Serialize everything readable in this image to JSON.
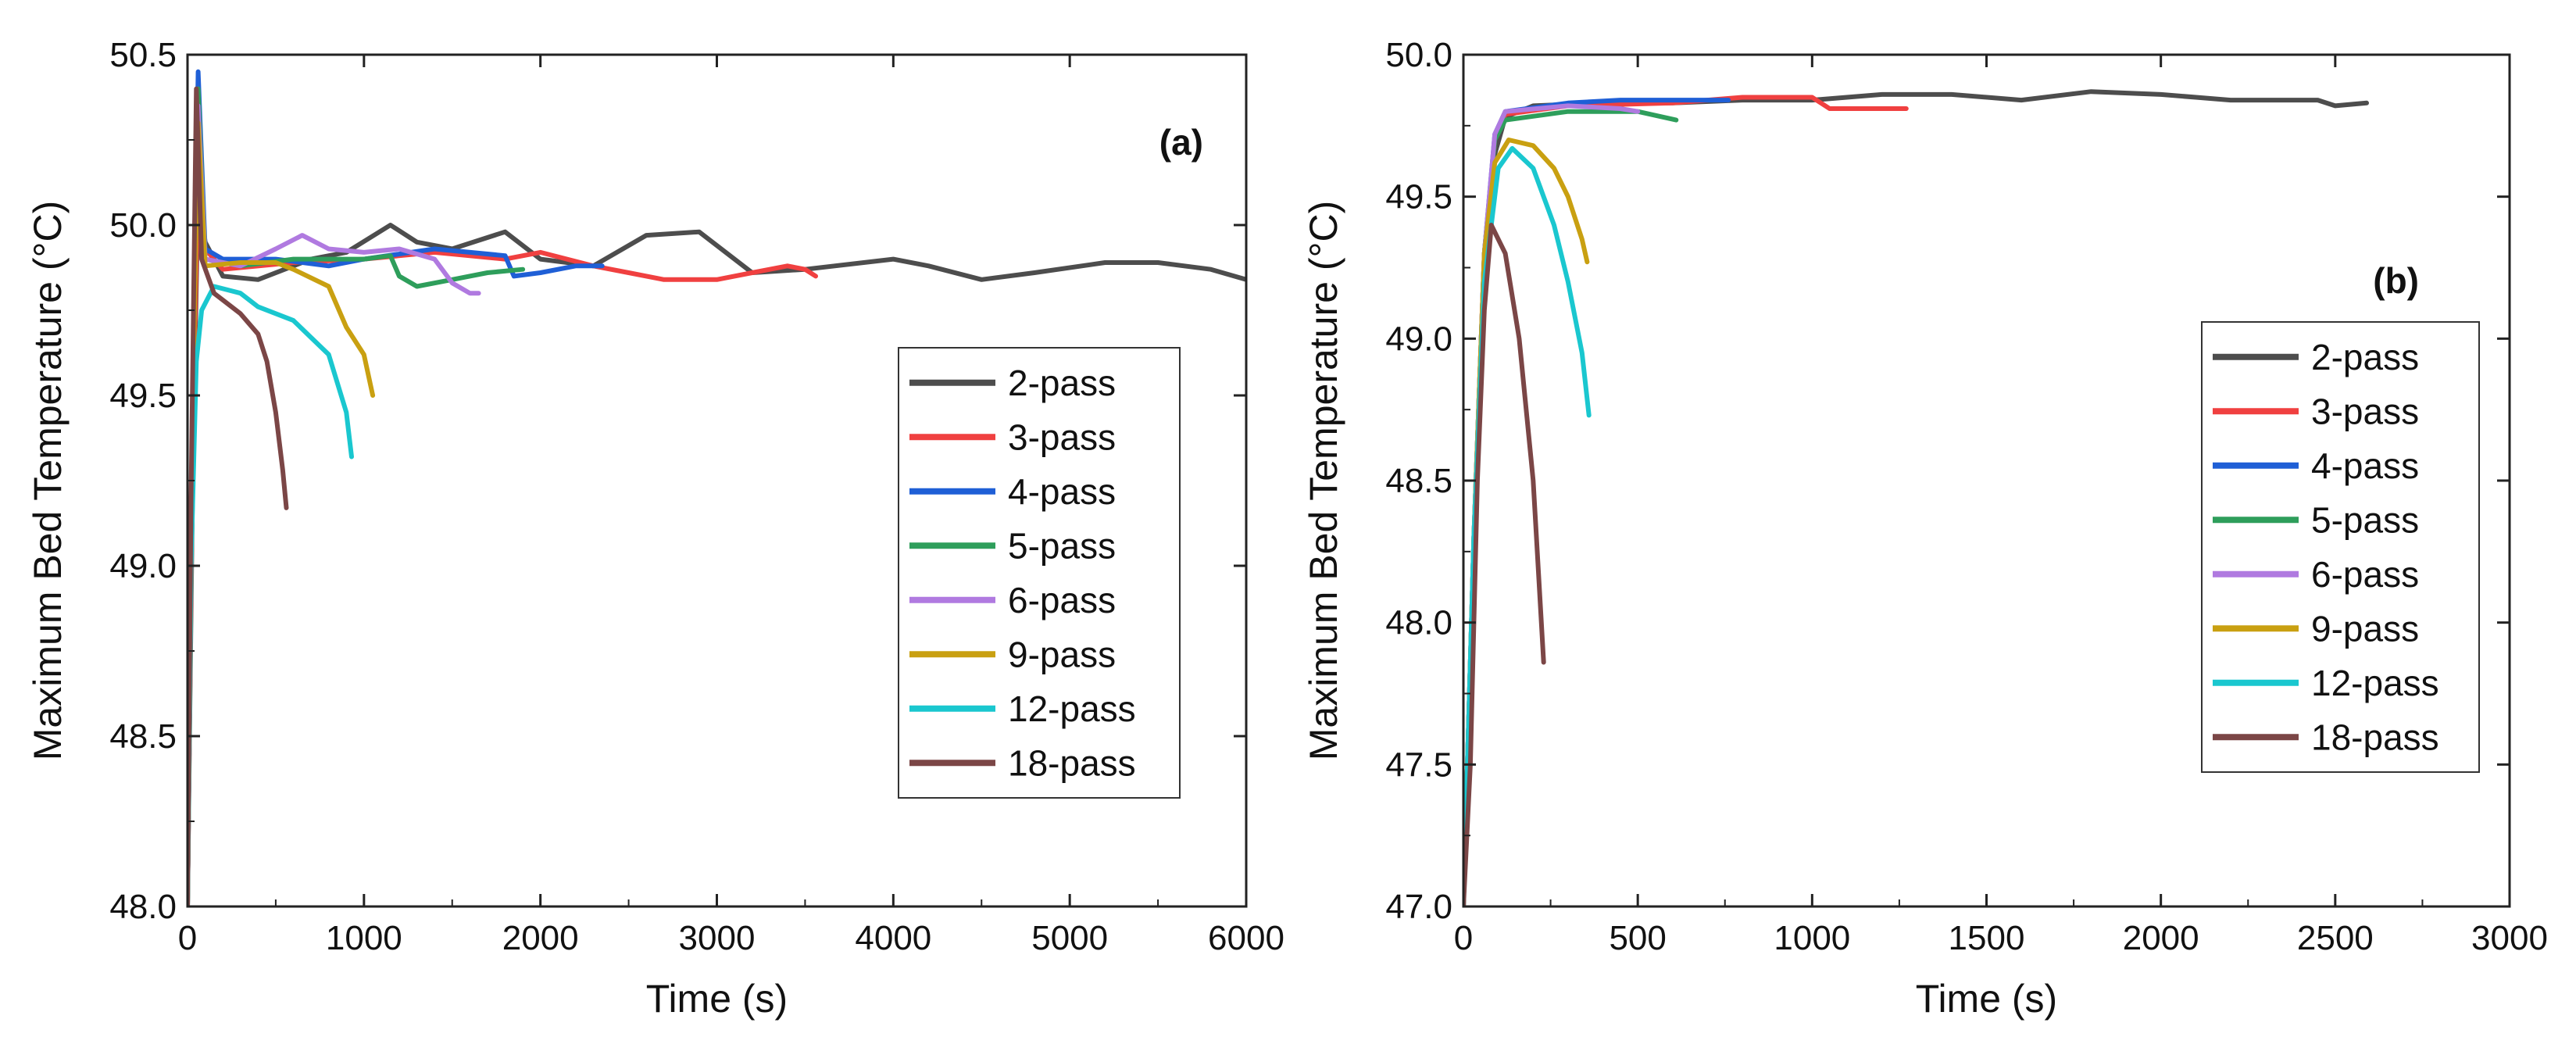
{
  "chart_data": [
    {
      "type": "line",
      "panel_label": "(a)",
      "xlabel": "Time (s)",
      "ylabel": "Maximum Bed Temperature (°C)",
      "xlim": [
        0,
        6000
      ],
      "ylim": [
        48.0,
        50.5
      ],
      "xticks": [
        0,
        1000,
        2000,
        3000,
        4000,
        5000,
        6000
      ],
      "yticks": [
        48.0,
        48.5,
        49.0,
        49.5,
        50.0,
        50.5
      ],
      "xtick_labels": [
        "0",
        "1000",
        "2000",
        "3000",
        "4000",
        "5000",
        "6000"
      ],
      "ytick_labels": [
        "48.0",
        "48.5",
        "49.0",
        "49.5",
        "50.0",
        "50.5"
      ],
      "grid": false,
      "legend_position": "center-right",
      "series": [
        {
          "name": "2-pass",
          "color": "#4d4d4d",
          "points": [
            [
              0,
              48.0
            ],
            [
              30,
              49.3
            ],
            [
              60,
              50.1
            ],
            [
              100,
              49.95
            ],
            [
              200,
              49.85
            ],
            [
              400,
              49.84
            ],
            [
              700,
              49.9
            ],
            [
              900,
              49.92
            ],
            [
              1150,
              50.0
            ],
            [
              1300,
              49.95
            ],
            [
              1500,
              49.93
            ],
            [
              1800,
              49.98
            ],
            [
              2000,
              49.9
            ],
            [
              2300,
              49.88
            ],
            [
              2600,
              49.97
            ],
            [
              2900,
              49.98
            ],
            [
              3200,
              49.86
            ],
            [
              3500,
              49.87
            ],
            [
              4000,
              49.9
            ],
            [
              4200,
              49.88
            ],
            [
              4500,
              49.84
            ],
            [
              4800,
              49.86
            ],
            [
              5200,
              49.89
            ],
            [
              5500,
              49.89
            ],
            [
              5800,
              49.87
            ],
            [
              6000,
              49.84
            ]
          ]
        },
        {
          "name": "3-pass",
          "color": "#f04040",
          "points": [
            [
              0,
              48.0
            ],
            [
              30,
              49.4
            ],
            [
              60,
              50.15
            ],
            [
              100,
              49.93
            ],
            [
              200,
              49.87
            ],
            [
              600,
              49.89
            ],
            [
              1000,
              49.9
            ],
            [
              1400,
              49.92
            ],
            [
              1800,
              49.9
            ],
            [
              2000,
              49.92
            ],
            [
              2300,
              49.88
            ],
            [
              2500,
              49.86
            ],
            [
              2700,
              49.84
            ],
            [
              3000,
              49.84
            ],
            [
              3200,
              49.86
            ],
            [
              3400,
              49.88
            ],
            [
              3500,
              49.87
            ],
            [
              3560,
              49.85
            ]
          ]
        },
        {
          "name": "4-pass",
          "color": "#1f5fd6",
          "points": [
            [
              0,
              48.0
            ],
            [
              30,
              49.5
            ],
            [
              60,
              50.45
            ],
            [
              100,
              49.93
            ],
            [
              200,
              49.9
            ],
            [
              500,
              49.9
            ],
            [
              800,
              49.88
            ],
            [
              1000,
              49.9
            ],
            [
              1400,
              49.93
            ],
            [
              1800,
              49.91
            ],
            [
              1850,
              49.85
            ],
            [
              2000,
              49.86
            ],
            [
              2200,
              49.88
            ],
            [
              2350,
              49.88
            ]
          ]
        },
        {
          "name": "5-pass",
          "color": "#2e9e5b",
          "points": [
            [
              0,
              48.0
            ],
            [
              30,
              49.5
            ],
            [
              60,
              50.4
            ],
            [
              100,
              49.9
            ],
            [
              300,
              49.88
            ],
            [
              600,
              49.9
            ],
            [
              1000,
              49.9
            ],
            [
              1150,
              49.91
            ],
            [
              1200,
              49.85
            ],
            [
              1300,
              49.82
            ],
            [
              1500,
              49.84
            ],
            [
              1700,
              49.86
            ],
            [
              1900,
              49.87
            ]
          ]
        },
        {
          "name": "6-pass",
          "color": "#b07ae0",
          "points": [
            [
              0,
              48.0
            ],
            [
              30,
              49.5
            ],
            [
              60,
              50.35
            ],
            [
              100,
              49.9
            ],
            [
              300,
              49.88
            ],
            [
              500,
              49.93
            ],
            [
              650,
              49.97
            ],
            [
              800,
              49.93
            ],
            [
              1000,
              49.92
            ],
            [
              1200,
              49.93
            ],
            [
              1400,
              49.9
            ],
            [
              1500,
              49.83
            ],
            [
              1600,
              49.8
            ],
            [
              1650,
              49.8
            ]
          ]
        },
        {
          "name": "9-pass",
          "color": "#c9a011",
          "points": [
            [
              0,
              48.0
            ],
            [
              30,
              49.5
            ],
            [
              60,
              50.3
            ],
            [
              100,
              49.88
            ],
            [
              300,
              49.89
            ],
            [
              500,
              49.89
            ],
            [
              600,
              49.87
            ],
            [
              800,
              49.82
            ],
            [
              900,
              49.7
            ],
            [
              1000,
              49.62
            ],
            [
              1050,
              49.5
            ]
          ]
        },
        {
          "name": "12-pass",
          "color": "#1ac7cf",
          "points": [
            [
              0,
              48.0
            ],
            [
              20,
              49.0
            ],
            [
              50,
              49.6
            ],
            [
              80,
              49.75
            ],
            [
              150,
              49.82
            ],
            [
              300,
              49.8
            ],
            [
              400,
              49.76
            ],
            [
              600,
              49.72
            ],
            [
              800,
              49.62
            ],
            [
              900,
              49.45
            ],
            [
              930,
              49.32
            ]
          ]
        },
        {
          "name": "18-pass",
          "color": "#7b4646",
          "points": [
            [
              0,
              48.0
            ],
            [
              20,
              49.2
            ],
            [
              50,
              50.4
            ],
            [
              80,
              49.9
            ],
            [
              150,
              49.8
            ],
            [
              300,
              49.74
            ],
            [
              400,
              49.68
            ],
            [
              450,
              49.6
            ],
            [
              500,
              49.45
            ],
            [
              540,
              49.28
            ],
            [
              560,
              49.17
            ]
          ]
        }
      ]
    },
    {
      "type": "line",
      "panel_label": "(b)",
      "xlabel": "Time (s)",
      "ylabel": "Maximum Bed Temperature (°C)",
      "xlim": [
        0,
        3000
      ],
      "ylim": [
        47.0,
        50.0
      ],
      "xticks": [
        0,
        500,
        1000,
        1500,
        2000,
        2500,
        3000
      ],
      "yticks": [
        47.0,
        47.5,
        48.0,
        48.5,
        49.0,
        49.5,
        50.0
      ],
      "xtick_labels": [
        "0",
        "500",
        "1000",
        "1500",
        "2000",
        "2500",
        "3000"
      ],
      "ytick_labels": [
        "47.0",
        "47.5",
        "48.0",
        "48.5",
        "49.0",
        "49.5",
        "50.0"
      ],
      "grid": false,
      "legend_position": "center-right",
      "series": [
        {
          "name": "2-pass",
          "color": "#4d4d4d",
          "points": [
            [
              0,
              47.0
            ],
            [
              30,
              48.2
            ],
            [
              60,
              49.2
            ],
            [
              90,
              49.65
            ],
            [
              120,
              49.78
            ],
            [
              200,
              49.82
            ],
            [
              400,
              49.83
            ],
            [
              600,
              49.83
            ],
            [
              800,
              49.84
            ],
            [
              1000,
              49.84
            ],
            [
              1200,
              49.86
            ],
            [
              1400,
              49.86
            ],
            [
              1600,
              49.84
            ],
            [
              1800,
              49.87
            ],
            [
              2000,
              49.86
            ],
            [
              2200,
              49.84
            ],
            [
              2450,
              49.84
            ],
            [
              2500,
              49.82
            ],
            [
              2590,
              49.83
            ]
          ]
        },
        {
          "name": "3-pass",
          "color": "#f04040",
          "points": [
            [
              0,
              47.0
            ],
            [
              30,
              48.3
            ],
            [
              60,
              49.3
            ],
            [
              90,
              49.7
            ],
            [
              120,
              49.79
            ],
            [
              300,
              49.82
            ],
            [
              600,
              49.83
            ],
            [
              800,
              49.85
            ],
            [
              1000,
              49.85
            ],
            [
              1050,
              49.81
            ],
            [
              1100,
              49.81
            ],
            [
              1270,
              49.81
            ]
          ]
        },
        {
          "name": "4-pass",
          "color": "#1f5fd6",
          "points": [
            [
              0,
              47.0
            ],
            [
              30,
              48.3
            ],
            [
              60,
              49.3
            ],
            [
              90,
              49.72
            ],
            [
              120,
              49.8
            ],
            [
              300,
              49.83
            ],
            [
              450,
              49.84
            ],
            [
              600,
              49.84
            ],
            [
              760,
              49.84
            ]
          ]
        },
        {
          "name": "5-pass",
          "color": "#2e9e5b",
          "points": [
            [
              0,
              47.0
            ],
            [
              30,
              48.3
            ],
            [
              60,
              49.3
            ],
            [
              90,
              49.7
            ],
            [
              120,
              49.77
            ],
            [
              300,
              49.8
            ],
            [
              500,
              49.8
            ],
            [
              610,
              49.77
            ]
          ]
        },
        {
          "name": "6-pass",
          "color": "#b07ae0",
          "points": [
            [
              0,
              47.0
            ],
            [
              30,
              48.3
            ],
            [
              60,
              49.3
            ],
            [
              90,
              49.72
            ],
            [
              120,
              49.8
            ],
            [
              300,
              49.82
            ],
            [
              450,
              49.81
            ],
            [
              500,
              49.8
            ]
          ]
        },
        {
          "name": "9-pass",
          "color": "#c9a011",
          "points": [
            [
              0,
              47.0
            ],
            [
              30,
              48.3
            ],
            [
              60,
              49.3
            ],
            [
              90,
              49.62
            ],
            [
              130,
              49.7
            ],
            [
              200,
              49.68
            ],
            [
              260,
              49.6
            ],
            [
              300,
              49.5
            ],
            [
              340,
              49.35
            ],
            [
              355,
              49.27
            ]
          ]
        },
        {
          "name": "12-pass",
          "color": "#1ac7cf",
          "points": [
            [
              0,
              47.0
            ],
            [
              30,
              48.3
            ],
            [
              60,
              49.2
            ],
            [
              100,
              49.6
            ],
            [
              140,
              49.67
            ],
            [
              200,
              49.6
            ],
            [
              260,
              49.4
            ],
            [
              300,
              49.2
            ],
            [
              340,
              48.95
            ],
            [
              360,
              48.73
            ]
          ]
        },
        {
          "name": "18-pass",
          "color": "#7b4646",
          "points": [
            [
              0,
              47.0
            ],
            [
              20,
              47.5
            ],
            [
              40,
              48.5
            ],
            [
              60,
              49.1
            ],
            [
              80,
              49.4
            ],
            [
              120,
              49.3
            ],
            [
              160,
              49.0
            ],
            [
              200,
              48.5
            ],
            [
              230,
              47.86
            ]
          ]
        }
      ]
    }
  ]
}
